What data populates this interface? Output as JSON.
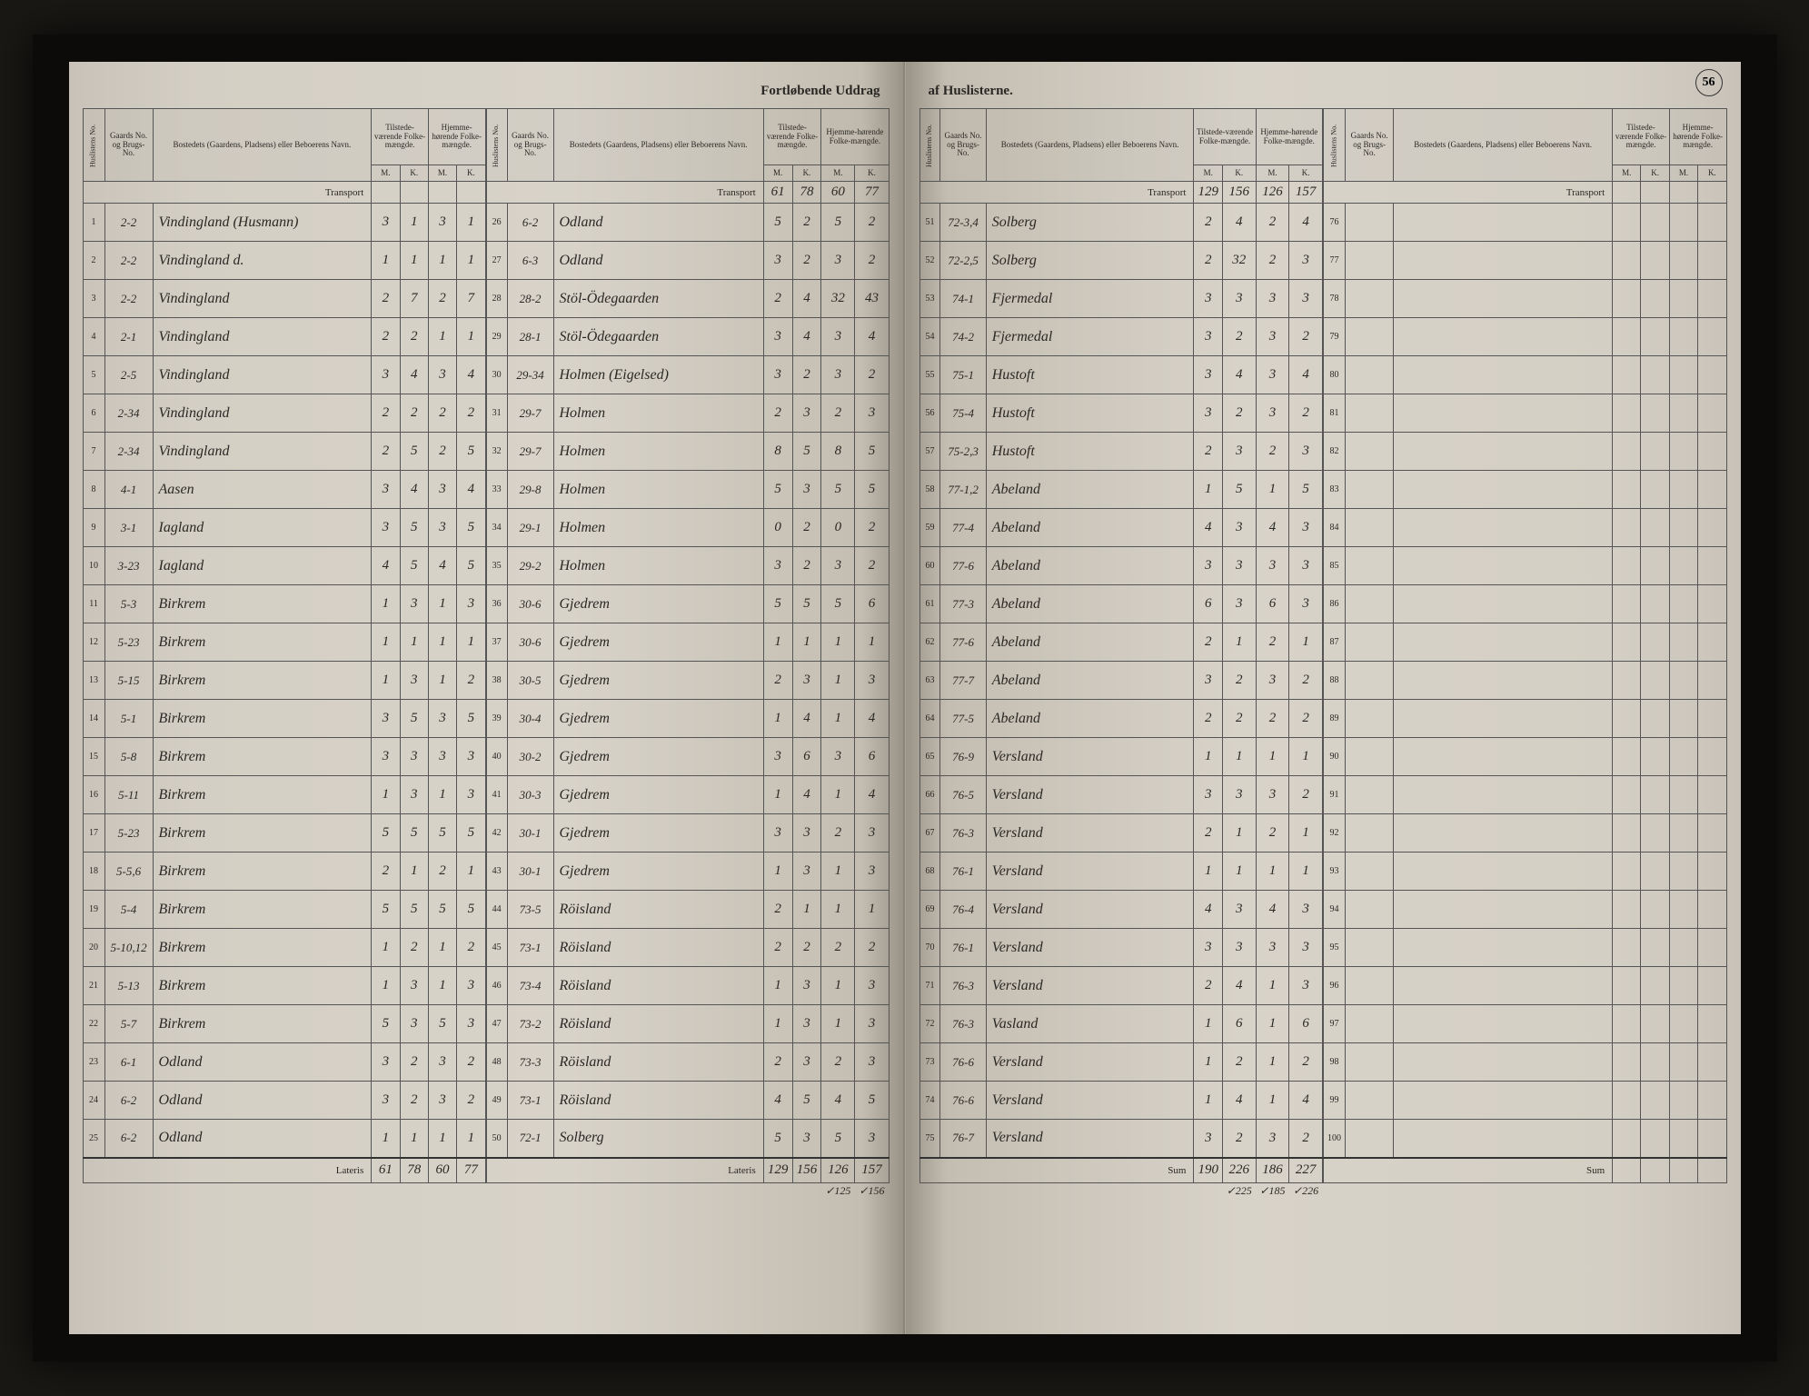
{
  "page_number": "56",
  "title_left": "Fortløbende Uddrag",
  "title_right": "af Huslisterne.",
  "headers": {
    "huslist": "Huslistens No.",
    "gaard": "Gaards No. og Brugs-No.",
    "bosted": "Bostedets (Gaardens, Pladsens) eller Beboerens Navn.",
    "tilstede": "Tilstede-værende Folke-mængde.",
    "hjemme": "Hjemme-hørende Folke-mængde.",
    "m": "M.",
    "k": "K."
  },
  "labels": {
    "transport": "Transport",
    "lateris": "Lateris",
    "sum": "Sum"
  },
  "transport_left_b": [
    "61",
    "78",
    "60",
    "77"
  ],
  "transport_right_a": [
    "129",
    "156",
    "126",
    "157"
  ],
  "transport_right_a_top": [
    "",
    "",
    "125",
    "156"
  ],
  "left_a": [
    {
      "h": "1",
      "g": "2-2",
      "n": "Vindingland (Husmann)",
      "v": [
        "3",
        "1",
        "3",
        "1"
      ]
    },
    {
      "h": "2",
      "g": "2-2",
      "n": "Vindingland d.",
      "v": [
        "1",
        "1",
        "1",
        "1"
      ]
    },
    {
      "h": "3",
      "g": "2-2",
      "n": "Vindingland",
      "v": [
        "2",
        "7",
        "2",
        "7"
      ]
    },
    {
      "h": "4",
      "g": "2-1",
      "n": "Vindingland",
      "v": [
        "2",
        "2",
        "1",
        "1"
      ]
    },
    {
      "h": "5",
      "g": "2-5",
      "n": "Vindingland",
      "v": [
        "3",
        "4",
        "3",
        "4"
      ]
    },
    {
      "h": "6",
      "g": "2-34",
      "n": "Vindingland",
      "v": [
        "2",
        "2",
        "2",
        "2"
      ]
    },
    {
      "h": "7",
      "g": "2-34",
      "n": "Vindingland",
      "v": [
        "2",
        "5",
        "2",
        "5"
      ]
    },
    {
      "h": "8",
      "g": "4-1",
      "n": "Aasen",
      "v": [
        "3",
        "4",
        "3",
        "4"
      ]
    },
    {
      "h": "9",
      "g": "3-1",
      "n": "Iagland",
      "v": [
        "3",
        "5",
        "3",
        "5"
      ]
    },
    {
      "h": "10",
      "g": "3-23",
      "n": "Iagland",
      "v": [
        "4",
        "5",
        "4",
        "5"
      ]
    },
    {
      "h": "11",
      "g": "5-3",
      "n": "Birkrem",
      "v": [
        "1",
        "3",
        "1",
        "3"
      ]
    },
    {
      "h": "12",
      "g": "5-23",
      "n": "Birkrem",
      "v": [
        "1",
        "1",
        "1",
        "1"
      ]
    },
    {
      "h": "13",
      "g": "5-15",
      "n": "Birkrem",
      "v": [
        "1",
        "3",
        "1",
        "2"
      ]
    },
    {
      "h": "14",
      "g": "5-1",
      "n": "Birkrem",
      "v": [
        "3",
        "5",
        "3",
        "5"
      ]
    },
    {
      "h": "15",
      "g": "5-8",
      "n": "Birkrem",
      "v": [
        "3",
        "3",
        "3",
        "3"
      ]
    },
    {
      "h": "16",
      "g": "5-11",
      "n": "Birkrem",
      "v": [
        "1",
        "3",
        "1",
        "3"
      ]
    },
    {
      "h": "17",
      "g": "5-23",
      "n": "Birkrem",
      "v": [
        "5",
        "5",
        "5",
        "5"
      ]
    },
    {
      "h": "18",
      "g": "5-5,6",
      "n": "Birkrem",
      "v": [
        "2",
        "1",
        "2",
        "1"
      ]
    },
    {
      "h": "19",
      "g": "5-4",
      "n": "Birkrem",
      "v": [
        "5",
        "5",
        "5",
        "5"
      ]
    },
    {
      "h": "20",
      "g": "5-10,12",
      "n": "Birkrem",
      "v": [
        "1",
        "2",
        "1",
        "2"
      ]
    },
    {
      "h": "21",
      "g": "5-13",
      "n": "Birkrem",
      "v": [
        "1",
        "3",
        "1",
        "3"
      ]
    },
    {
      "h": "22",
      "g": "5-7",
      "n": "Birkrem",
      "v": [
        "5",
        "3",
        "5",
        "3"
      ]
    },
    {
      "h": "23",
      "g": "6-1",
      "n": "Odland",
      "v": [
        "3",
        "2",
        "3",
        "2"
      ]
    },
    {
      "h": "24",
      "g": "6-2",
      "n": "Odland",
      "v": [
        "3",
        "2",
        "3",
        "2"
      ]
    },
    {
      "h": "25",
      "g": "6-2",
      "n": "Odland",
      "v": [
        "1",
        "1",
        "1",
        "1"
      ]
    }
  ],
  "left_a_lateris": [
    "61",
    "78",
    "60",
    "77"
  ],
  "left_b": [
    {
      "h": "26",
      "g": "6-2",
      "n": "Odland",
      "v": [
        "5",
        "2",
        "5",
        "2"
      ]
    },
    {
      "h": "27",
      "g": "6-3",
      "n": "Odland",
      "v": [
        "3",
        "2",
        "3",
        "2"
      ]
    },
    {
      "h": "28",
      "g": "28-2",
      "n": "Stöl-Ödegaarden",
      "v": [
        "2",
        "4",
        "32",
        "43"
      ]
    },
    {
      "h": "29",
      "g": "28-1",
      "n": "Stöl-Ödegaarden",
      "v": [
        "3",
        "4",
        "3",
        "4"
      ]
    },
    {
      "h": "30",
      "g": "29-34",
      "n": "Holmen (Eigelsed)",
      "v": [
        "3",
        "2",
        "3",
        "2"
      ]
    },
    {
      "h": "31",
      "g": "29-7",
      "n": "Holmen",
      "v": [
        "2",
        "3",
        "2",
        "3"
      ]
    },
    {
      "h": "32",
      "g": "29-7",
      "n": "Holmen",
      "v": [
        "8",
        "5",
        "8",
        "5"
      ]
    },
    {
      "h": "33",
      "g": "29-8",
      "n": "Holmen",
      "v": [
        "5",
        "3",
        "5",
        "5"
      ]
    },
    {
      "h": "34",
      "g": "29-1",
      "n": "Holmen",
      "v": [
        "0",
        "2",
        "0",
        "2"
      ]
    },
    {
      "h": "35",
      "g": "29-2",
      "n": "Holmen",
      "v": [
        "3",
        "2",
        "3",
        "2"
      ]
    },
    {
      "h": "36",
      "g": "30-6",
      "n": "Gjedrem",
      "v": [
        "5",
        "5",
        "5",
        "6"
      ]
    },
    {
      "h": "37",
      "g": "30-6",
      "n": "Gjedrem",
      "v": [
        "1",
        "1",
        "1",
        "1"
      ]
    },
    {
      "h": "38",
      "g": "30-5",
      "n": "Gjedrem",
      "v": [
        "2",
        "3",
        "1",
        "3"
      ]
    },
    {
      "h": "39",
      "g": "30-4",
      "n": "Gjedrem",
      "v": [
        "1",
        "4",
        "1",
        "4"
      ]
    },
    {
      "h": "40",
      "g": "30-2",
      "n": "Gjedrem",
      "v": [
        "3",
        "6",
        "3",
        "6"
      ]
    },
    {
      "h": "41",
      "g": "30-3",
      "n": "Gjedrem",
      "v": [
        "1",
        "4",
        "1",
        "4"
      ]
    },
    {
      "h": "42",
      "g": "30-1",
      "n": "Gjedrem",
      "v": [
        "3",
        "3",
        "2",
        "3"
      ]
    },
    {
      "h": "43",
      "g": "30-1",
      "n": "Gjedrem",
      "v": [
        "1",
        "3",
        "1",
        "3"
      ]
    },
    {
      "h": "44",
      "g": "73-5",
      "n": "Röisland",
      "v": [
        "2",
        "1",
        "1",
        "1"
      ]
    },
    {
      "h": "45",
      "g": "73-1",
      "n": "Röisland",
      "v": [
        "2",
        "2",
        "2",
        "2"
      ]
    },
    {
      "h": "46",
      "g": "73-4",
      "n": "Röisland",
      "v": [
        "1",
        "3",
        "1",
        "3"
      ]
    },
    {
      "h": "47",
      "g": "73-2",
      "n": "Röisland",
      "v": [
        "1",
        "3",
        "1",
        "3"
      ]
    },
    {
      "h": "48",
      "g": "73-3",
      "n": "Röisland",
      "v": [
        "2",
        "3",
        "2",
        "3"
      ]
    },
    {
      "h": "49",
      "g": "73-1",
      "n": "Röisland",
      "v": [
        "4",
        "5",
        "4",
        "5"
      ]
    },
    {
      "h": "50",
      "g": "72-1",
      "n": "Solberg",
      "v": [
        "5",
        "3",
        "5",
        "3"
      ]
    }
  ],
  "left_b_lateris": [
    "129",
    "156",
    "126",
    "157"
  ],
  "left_b_lateris_alt": [
    "",
    "",
    "125",
    "156"
  ],
  "right_a": [
    {
      "h": "51",
      "g": "72-3,4",
      "n": "Solberg",
      "v": [
        "2",
        "4",
        "2",
        "4"
      ]
    },
    {
      "h": "52",
      "g": "72-2,5",
      "n": "Solberg",
      "v": [
        "2",
        "32",
        "2",
        "3"
      ]
    },
    {
      "h": "53",
      "g": "74-1",
      "n": "Fjermedal",
      "v": [
        "3",
        "3",
        "3",
        "3"
      ]
    },
    {
      "h": "54",
      "g": "74-2",
      "n": "Fjermedal",
      "v": [
        "3",
        "2",
        "3",
        "2"
      ]
    },
    {
      "h": "55",
      "g": "75-1",
      "n": "Hustoft",
      "v": [
        "3",
        "4",
        "3",
        "4"
      ]
    },
    {
      "h": "56",
      "g": "75-4",
      "n": "Hustoft",
      "v": [
        "3",
        "2",
        "3",
        "2"
      ]
    },
    {
      "h": "57",
      "g": "75-2,3",
      "n": "Hustoft",
      "v": [
        "2",
        "3",
        "2",
        "3"
      ]
    },
    {
      "h": "58",
      "g": "77-1,2",
      "n": "Abeland",
      "v": [
        "1",
        "5",
        "1",
        "5"
      ]
    },
    {
      "h": "59",
      "g": "77-4",
      "n": "Abeland",
      "v": [
        "4",
        "3",
        "4",
        "3"
      ]
    },
    {
      "h": "60",
      "g": "77-6",
      "n": "Abeland",
      "v": [
        "3",
        "3",
        "3",
        "3"
      ]
    },
    {
      "h": "61",
      "g": "77-3",
      "n": "Abeland",
      "v": [
        "6",
        "3",
        "6",
        "3"
      ]
    },
    {
      "h": "62",
      "g": "77-6",
      "n": "Abeland",
      "v": [
        "2",
        "1",
        "2",
        "1"
      ]
    },
    {
      "h": "63",
      "g": "77-7",
      "n": "Abeland",
      "v": [
        "3",
        "2",
        "3",
        "2"
      ]
    },
    {
      "h": "64",
      "g": "77-5",
      "n": "Abeland",
      "v": [
        "2",
        "2",
        "2",
        "2"
      ]
    },
    {
      "h": "65",
      "g": "76-9",
      "n": "Versland",
      "v": [
        "1",
        "1",
        "1",
        "1"
      ]
    },
    {
      "h": "66",
      "g": "76-5",
      "n": "Versland",
      "v": [
        "3",
        "3",
        "3",
        "2"
      ]
    },
    {
      "h": "67",
      "g": "76-3",
      "n": "Versland",
      "v": [
        "2",
        "1",
        "2",
        "1"
      ]
    },
    {
      "h": "68",
      "g": "76-1",
      "n": "Versland",
      "v": [
        "1",
        "1",
        "1",
        "1"
      ]
    },
    {
      "h": "69",
      "g": "76-4",
      "n": "Versland",
      "v": [
        "4",
        "3",
        "4",
        "3"
      ]
    },
    {
      "h": "70",
      "g": "76-1",
      "n": "Versland",
      "v": [
        "3",
        "3",
        "3",
        "3"
      ]
    },
    {
      "h": "71",
      "g": "76-3",
      "n": "Versland",
      "v": [
        "2",
        "4",
        "1",
        "3"
      ]
    },
    {
      "h": "72",
      "g": "76-3",
      "n": "Vasland",
      "v": [
        "1",
        "6",
        "1",
        "6"
      ]
    },
    {
      "h": "73",
      "g": "76-6",
      "n": "Versland",
      "v": [
        "1",
        "2",
        "1",
        "2"
      ]
    },
    {
      "h": "74",
      "g": "76-6",
      "n": "Versland",
      "v": [
        "1",
        "4",
        "1",
        "4"
      ]
    },
    {
      "h": "75",
      "g": "76-7",
      "n": "Versland",
      "v": [
        "3",
        "2",
        "3",
        "2"
      ]
    }
  ],
  "right_a_lateris": [
    "190",
    "226",
    "186",
    "227"
  ],
  "right_a_lateris_alt": [
    "",
    "225",
    "185",
    "226"
  ],
  "right_b": [
    {
      "h": "76"
    },
    {
      "h": "77"
    },
    {
      "h": "78"
    },
    {
      "h": "79"
    },
    {
      "h": "80"
    },
    {
      "h": "81"
    },
    {
      "h": "82"
    },
    {
      "h": "83"
    },
    {
      "h": "84"
    },
    {
      "h": "85"
    },
    {
      "h": "86"
    },
    {
      "h": "87"
    },
    {
      "h": "88"
    },
    {
      "h": "89"
    },
    {
      "h": "90"
    },
    {
      "h": "91"
    },
    {
      "h": "92"
    },
    {
      "h": "93"
    },
    {
      "h": "94"
    },
    {
      "h": "95"
    },
    {
      "h": "96"
    },
    {
      "h": "97"
    },
    {
      "h": "98"
    },
    {
      "h": "99"
    },
    {
      "h": "100"
    }
  ]
}
